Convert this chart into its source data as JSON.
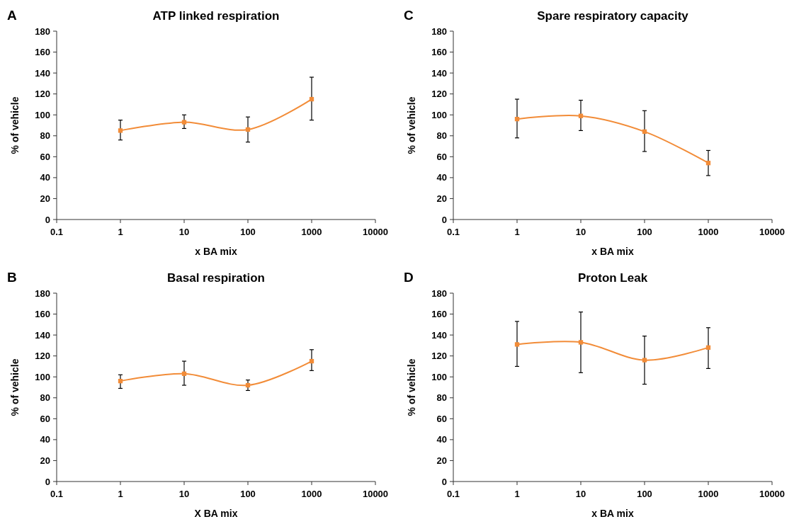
{
  "chart_data": [
    {
      "type": "line",
      "title": "ATP linked respiration",
      "annotations": [
        "A"
      ],
      "xlabel": "x BA mix",
      "ylabel": "% of vehicle",
      "log": "x",
      "x": [
        1,
        10,
        100,
        1000
      ],
      "xlim": [
        0.1,
        10000
      ],
      "xticks": [
        0.1,
        1,
        10,
        100,
        1000,
        10000
      ],
      "ylim": [
        0,
        180
      ],
      "yticks": [
        0,
        20,
        40,
        60,
        80,
        100,
        120,
        140,
        160,
        180
      ],
      "marker": "square",
      "series": [
        {
          "color": "#f28c38",
          "values": [
            85,
            93,
            86,
            115
          ],
          "errors": [
            [
              76,
              95
            ],
            [
              87,
              100
            ],
            [
              74,
              98
            ],
            [
              95,
              136
            ]
          ]
        }
      ]
    },
    {
      "type": "line",
      "title": "Spare respiratory capacity",
      "annotations": [
        "C"
      ],
      "xlabel": "x BA mix",
      "ylabel": "% of vehicle",
      "log": "x",
      "x": [
        1,
        10,
        100,
        1000
      ],
      "xlim": [
        0.1,
        10000
      ],
      "xticks": [
        0.1,
        1,
        10,
        100,
        1000,
        10000
      ],
      "ylim": [
        0,
        180
      ],
      "yticks": [
        0,
        20,
        40,
        60,
        80,
        100,
        120,
        140,
        160,
        180
      ],
      "marker": "square",
      "series": [
        {
          "color": "#f28c38",
          "values": [
            96,
            99,
            84,
            54
          ],
          "errors": [
            [
              78,
              115
            ],
            [
              85,
              114
            ],
            [
              65,
              104
            ],
            [
              42,
              66
            ]
          ]
        }
      ]
    },
    {
      "type": "line",
      "title": "Basal respiration",
      "annotations": [
        "B"
      ],
      "xlabel": "X BA mix",
      "ylabel": "% of vehicle",
      "log": "x",
      "x": [
        1,
        10,
        100,
        1000
      ],
      "xlim": [
        0.1,
        10000
      ],
      "xticks": [
        0.1,
        1,
        10,
        100,
        1000,
        10000
      ],
      "ylim": [
        0,
        180
      ],
      "yticks": [
        0,
        20,
        40,
        60,
        80,
        100,
        120,
        140,
        160,
        180
      ],
      "marker": "square",
      "series": [
        {
          "color": "#f28c38",
          "values": [
            96,
            103,
            92,
            115
          ],
          "errors": [
            [
              89,
              102
            ],
            [
              92,
              115
            ],
            [
              87,
              97
            ],
            [
              106,
              126
            ]
          ]
        }
      ]
    },
    {
      "type": "line",
      "title": "Proton Leak",
      "annotations": [
        "D"
      ],
      "xlabel": "x BA mix",
      "ylabel": "% of vehicle",
      "log": "x",
      "x": [
        1,
        10,
        100,
        1000
      ],
      "xlim": [
        0.1,
        10000
      ],
      "xticks": [
        0.1,
        1,
        10,
        100,
        1000,
        10000
      ],
      "ylim": [
        0,
        180
      ],
      "yticks": [
        0,
        20,
        40,
        60,
        80,
        100,
        120,
        140,
        160,
        180
      ],
      "marker": "square",
      "series": [
        {
          "color": "#f28c38",
          "values": [
            131,
            133,
            116,
            128
          ],
          "errors": [
            [
              110,
              153
            ],
            [
              104,
              162
            ],
            [
              93,
              139
            ],
            [
              108,
              147
            ]
          ]
        }
      ]
    }
  ]
}
